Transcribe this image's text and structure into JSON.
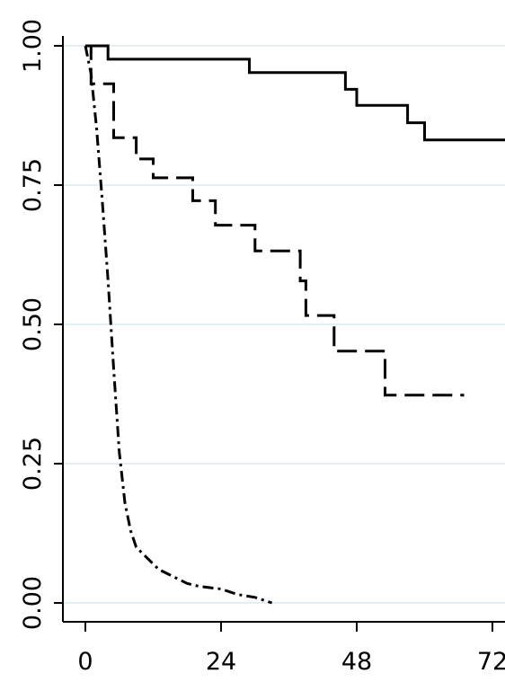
{
  "chart_data": {
    "type": "line",
    "title": "",
    "xlabel": "",
    "ylabel": "",
    "xlim": [
      0,
      76
    ],
    "ylim": [
      0,
      1
    ],
    "x_ticks": [
      0,
      24,
      48,
      72
    ],
    "y_ticks": [
      0,
      0.25,
      0.5,
      0.75,
      1.0
    ],
    "x_tick_labels": [
      "0",
      "24",
      "48",
      "72"
    ],
    "y_tick_labels": [
      "0.00",
      "0.25",
      "0.50",
      "0.75",
      "1.00"
    ],
    "grid": "horizontal",
    "legend": "none",
    "series": [
      {
        "style": "solid",
        "color": "#000000",
        "x": [
          0,
          4,
          29,
          46,
          48,
          57,
          60,
          76
        ],
        "y": [
          1.0,
          0.976,
          0.952,
          0.922,
          0.893,
          0.862,
          0.831,
          0.831
        ]
      },
      {
        "style": "dashed",
        "color": "#000000",
        "x": [
          0,
          1,
          5,
          9,
          12,
          19,
          23,
          30,
          38,
          39,
          44,
          53,
          67
        ],
        "y": [
          1.0,
          0.932,
          0.835,
          0.797,
          0.763,
          0.722,
          0.678,
          0.632,
          0.578,
          0.516,
          0.452,
          0.373,
          0.373
        ]
      },
      {
        "style": "dashdot",
        "color": "#000000",
        "x": [
          0,
          1,
          2,
          3,
          4,
          5,
          6,
          7,
          8,
          9,
          10,
          11,
          12,
          13,
          14,
          15,
          16,
          18,
          20,
          24,
          27,
          30,
          33
        ],
        "y": [
          1.0,
          0.95,
          0.85,
          0.72,
          0.58,
          0.42,
          0.27,
          0.18,
          0.13,
          0.1,
          0.09,
          0.08,
          0.07,
          0.06,
          0.055,
          0.05,
          0.045,
          0.035,
          0.03,
          0.025,
          0.015,
          0.01,
          0.0
        ]
      }
    ]
  }
}
